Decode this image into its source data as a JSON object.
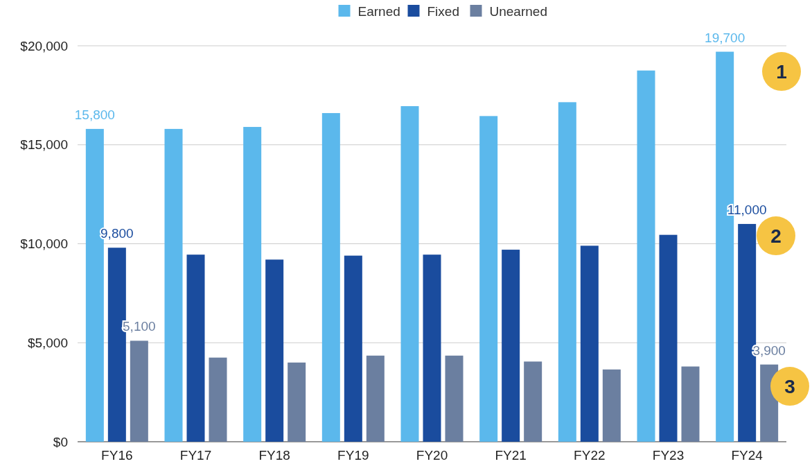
{
  "chart_data": {
    "type": "bar",
    "categories": [
      "FY16",
      "FY17",
      "FY18",
      "FY19",
      "FY20",
      "FY21",
      "FY22",
      "FY23",
      "FY24"
    ],
    "series": [
      {
        "name": "Earned",
        "color": "#5bb8ec",
        "values": [
          15800,
          15800,
          15900,
          16600,
          16950,
          16450,
          17150,
          18750,
          19700
        ],
        "value_labels": [
          "15,800",
          null,
          null,
          null,
          null,
          null,
          null,
          null,
          "19,700"
        ]
      },
      {
        "name": "Fixed",
        "color": "#1a4c9e",
        "values": [
          9800,
          9450,
          9200,
          9400,
          9450,
          9700,
          9900,
          10450,
          11000
        ],
        "value_labels": [
          "9,800",
          null,
          null,
          null,
          null,
          null,
          null,
          null,
          "11,000"
        ]
      },
      {
        "name": "Unearned",
        "color": "#6b7fa0",
        "values": [
          5100,
          4250,
          4000,
          4350,
          4350,
          4050,
          3650,
          3800,
          3900
        ],
        "value_labels": [
          "5,100",
          null,
          null,
          null,
          null,
          null,
          null,
          null,
          "3,900"
        ]
      }
    ],
    "ylim": [
      0,
      20000
    ],
    "yticks": [
      {
        "value": 0,
        "label": "$0"
      },
      {
        "value": 5000,
        "label": "$5,000"
      },
      {
        "value": 10000,
        "label": "$10,000"
      },
      {
        "value": 15000,
        "label": "$15,000"
      },
      {
        "value": 20000,
        "label": "$20,000"
      }
    ],
    "grid": "y",
    "legend": "top",
    "annotations": [
      "1",
      "2",
      "3"
    ]
  }
}
